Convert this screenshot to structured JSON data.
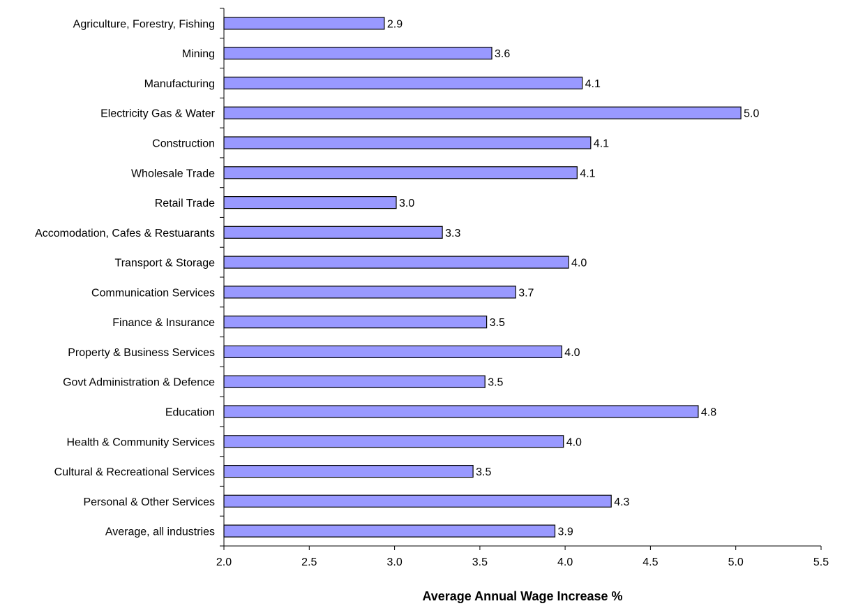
{
  "chart_data": {
    "type": "bar",
    "orientation": "horizontal",
    "title": "",
    "xlabel": "Average Annual Wage Increase %",
    "ylabel": "",
    "xlim": [
      2.0,
      5.5
    ],
    "xticks": [
      2.0,
      2.5,
      3.0,
      3.5,
      4.0,
      4.5,
      5.0,
      5.5
    ],
    "xtick_labels": [
      "2.0",
      "2.5",
      "3.0",
      "3.5",
      "4.0",
      "4.5",
      "5.0",
      "5.5"
    ],
    "grid": false,
    "legend": "none",
    "bar_color": "#9999ff",
    "bar_edge_color": "#000000",
    "categories": [
      "Agriculture, Forestry, Fishing",
      "Mining",
      "Manufacturing",
      "Electricity Gas & Water",
      "Construction",
      "Wholesale Trade",
      "Retail Trade",
      "Accomodation, Cafes & Restuarants",
      "Transport & Storage",
      "Communication Services",
      "Finance & Insurance",
      "Property & Business Services",
      "Govt Administration & Defence",
      "Education",
      "Health & Community Services",
      "Cultural & Recreational Services",
      "Personal & Other Services",
      "Average, all industries"
    ],
    "values": [
      2.94,
      3.57,
      4.1,
      5.03,
      4.15,
      4.07,
      3.01,
      3.28,
      4.02,
      3.71,
      3.54,
      3.98,
      3.53,
      4.78,
      3.99,
      3.46,
      4.27,
      3.94
    ],
    "data_labels": [
      "2.9",
      "3.6",
      "4.1",
      "5.0",
      "4.1",
      "4.1",
      "3.0",
      "3.3",
      "4.0",
      "3.7",
      "3.5",
      "4.0",
      "3.5",
      "4.8",
      "4.0",
      "3.5",
      "4.3",
      "3.9"
    ]
  }
}
